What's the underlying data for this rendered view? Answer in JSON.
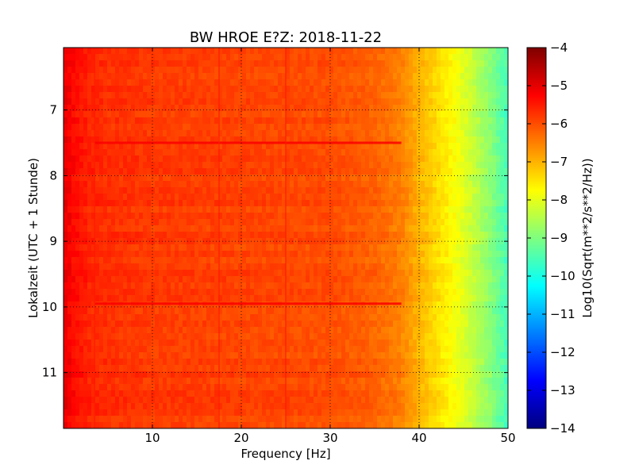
{
  "chart_data": {
    "type": "heatmap",
    "title": "BW HROE E?Z: 2018-11-22",
    "xlabel": "Frequency [Hz]",
    "ylabel": "Lokalzeit (UTC + 1 Stunde)",
    "xlim": [
      0,
      50
    ],
    "ylim": [
      6.05,
      11.85
    ],
    "y_inverted": true,
    "x_ticks": [
      10,
      20,
      30,
      40,
      50
    ],
    "x_tick_labels": [
      "10",
      "20",
      "30",
      "40",
      "50"
    ],
    "y_ticks": [
      7,
      8,
      9,
      10,
      11
    ],
    "y_tick_labels": [
      "7",
      "8",
      "9",
      "10",
      "11"
    ],
    "grid": true,
    "colormap": "jet",
    "colorbar": {
      "label": "Log10(Sqrt(m**2/s**2/Hz))",
      "min": -14,
      "max": -4,
      "ticks": [
        -4,
        -5,
        -6,
        -7,
        -8,
        -9,
        -10,
        -11,
        -12,
        -13,
        -14
      ],
      "tick_labels": [
        "−4",
        "−5",
        "−6",
        "−7",
        "−8",
        "−9",
        "−10",
        "−11",
        "−12",
        "−13",
        "−14"
      ]
    },
    "spectrum_profile": {
      "frequency_hz": [
        0,
        1,
        3,
        5,
        10,
        20,
        30,
        35,
        38,
        40,
        42,
        44,
        46,
        48,
        50
      ],
      "log10_amplitude": [
        -5.0,
        -5.3,
        -5.6,
        -5.7,
        -5.8,
        -5.9,
        -6.0,
        -6.2,
        -6.5,
        -7.0,
        -7.4,
        -7.8,
        -8.3,
        -8.9,
        -9.6
      ]
    },
    "features": {
      "horizontal_bands_hours": [
        7.5,
        9.95
      ],
      "horizontal_band_log10_amplitude": -5.2,
      "vertical_lines_hz": [
        3.5,
        17.5,
        25.0
      ],
      "vertical_line_log10_amplitude": -5.5
    }
  }
}
